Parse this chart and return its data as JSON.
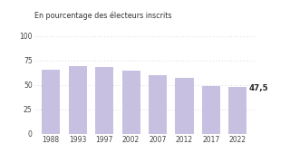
{
  "categories": [
    "1988",
    "1993",
    "1997",
    "2002",
    "2007",
    "2012",
    "2017",
    "2022"
  ],
  "values": [
    65.7,
    68.9,
    67.9,
    64.4,
    60.0,
    57.2,
    48.7,
    47.5
  ],
  "bar_color": "#c8c0e0",
  "title": "En pourcentage des électeurs inscrits",
  "title_fontsize": 5.8,
  "ylim": [
    0,
    100
  ],
  "yticks": [
    0,
    25,
    50,
    75,
    100
  ],
  "annotation_label": "47,5",
  "annotation_index": 7,
  "grid_color": "#c8c8c8",
  "background_color": "#ffffff",
  "tick_fontsize": 5.5,
  "bar_width": 0.68
}
